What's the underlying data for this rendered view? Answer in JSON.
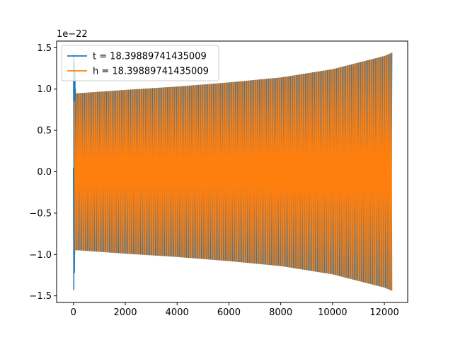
{
  "chart_data": {
    "type": "line",
    "title": "",
    "xlabel": "",
    "ylabel": "",
    "y_offset_label": "1e−22",
    "xlim": [
      -650,
      12900
    ],
    "ylim": [
      -1.58,
      1.58
    ],
    "x_ticks": [
      {
        "value": 0,
        "label": "0"
      },
      {
        "value": 2000,
        "label": "2000"
      },
      {
        "value": 4000,
        "label": "4000"
      },
      {
        "value": 6000,
        "label": "6000"
      },
      {
        "value": 8000,
        "label": "8000"
      },
      {
        "value": 10000,
        "label": "10000"
      },
      {
        "value": 12000,
        "label": "12000"
      }
    ],
    "y_ticks": [
      {
        "value": 1.5,
        "label": "1.5"
      },
      {
        "value": 1.0,
        "label": "1.0"
      },
      {
        "value": 0.5,
        "label": "0.5"
      },
      {
        "value": 0.0,
        "label": "0.0"
      },
      {
        "value": -0.5,
        "label": "−0.5"
      },
      {
        "value": -1.0,
        "label": "−1.0"
      },
      {
        "value": -1.5,
        "label": "−1.5"
      }
    ],
    "grid": false,
    "legend_position": "upper-left",
    "series": [
      {
        "name": "t = 18.39889741435009",
        "color": "#1f77b4",
        "x": [
          0,
          40,
          80,
          200,
          2000,
          4000,
          6000,
          8000,
          10000,
          12000,
          12300
        ],
        "y_envelope": [
          1.43,
          1.2,
          0.95,
          0.95,
          0.99,
          1.03,
          1.08,
          1.14,
          1.24,
          1.4,
          1.44
        ]
      },
      {
        "name": "h = 18.39889741435009",
        "color": "#ff7f0e",
        "x": [
          0,
          40,
          80,
          200,
          2000,
          4000,
          6000,
          8000,
          10000,
          12000,
          12300
        ],
        "y_envelope": [
          0.1,
          0.95,
          0.95,
          0.95,
          0.99,
          1.03,
          1.08,
          1.14,
          1.24,
          1.4,
          1.44
        ]
      }
    ]
  }
}
